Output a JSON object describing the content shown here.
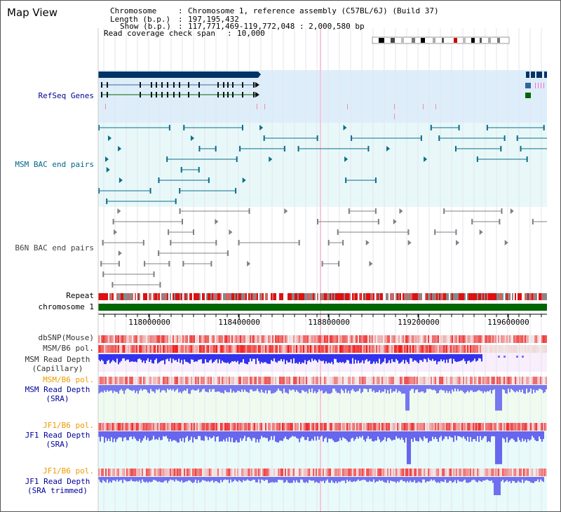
{
  "app": {
    "title": "Map View"
  },
  "info": {
    "chromosome_label": "Chromosome",
    "chromosome_value": "Chromosome 1, reference assembly (C57BL/6J) (Build 37)",
    "length_label": "Length (b.p.)",
    "length_value": "197,195,432",
    "show_label": "Show (b.p.)",
    "show_value": "117,771,469-119,772,048 : 2,000,580 bp",
    "coverage_label": "Read coverage check span",
    "coverage_value": "10,000"
  },
  "tracks": {
    "refseq": "RefSeq Genes",
    "msm_bac": "MSM BAC end pairs",
    "b6n_bac": "B6N BAC end pairs",
    "repeat": "Repeat",
    "chromosome": "chromosome 1",
    "dbsnp": "dbSNP(Mouse)",
    "msm_b6_pol": "MSM/B6 pol.",
    "msm_depth_cap_1": "MSM Read Depth",
    "msm_depth_cap_2": "(Capillary)",
    "msm_b6_pol_2": "MSM/B6 pol.",
    "msm_depth_sra_1": "MSM Read Depth",
    "msm_depth_sra_2": "(SRA)",
    "jf1_b6_pol": "JF1/B6 pol.",
    "jf1_depth_sra_1": "JF1 Read Depth",
    "jf1_depth_sra_2": "(SRA)",
    "jf1_b6_pol_2": "JF1/B6 pol.",
    "jf1_depth_trim_1": "JF1 Read Depth",
    "jf1_depth_trim_2": "(SRA trimmed)"
  },
  "axis": {
    "ticks": [
      {
        "label": "118000000",
        "value": 118000000
      },
      {
        "label": "118400000",
        "value": 118400000
      },
      {
        "label": "118800000",
        "value": 118800000
      },
      {
        "label": "119200000",
        "value": 119200000
      },
      {
        "label": "119600000",
        "value": 119600000
      }
    ]
  },
  "colors": {
    "refseq_bg": "#ddeefa",
    "bac_bg": "#e8f8f8",
    "gene_dark": "#003366",
    "gene_mid": "#336699",
    "gene_green": "#006600",
    "msm_feature": "#0a6e8c",
    "b6n_feature": "#808080",
    "chrom_green": "#006600",
    "depth_blue": "#3333ee",
    "depth_light_blue": "#7777f0",
    "pol_red": "#ee2222",
    "label_blue": "#000099",
    "label_teal": "#006688",
    "label_orange": "#ee9900",
    "label_gray": "#333333"
  }
}
